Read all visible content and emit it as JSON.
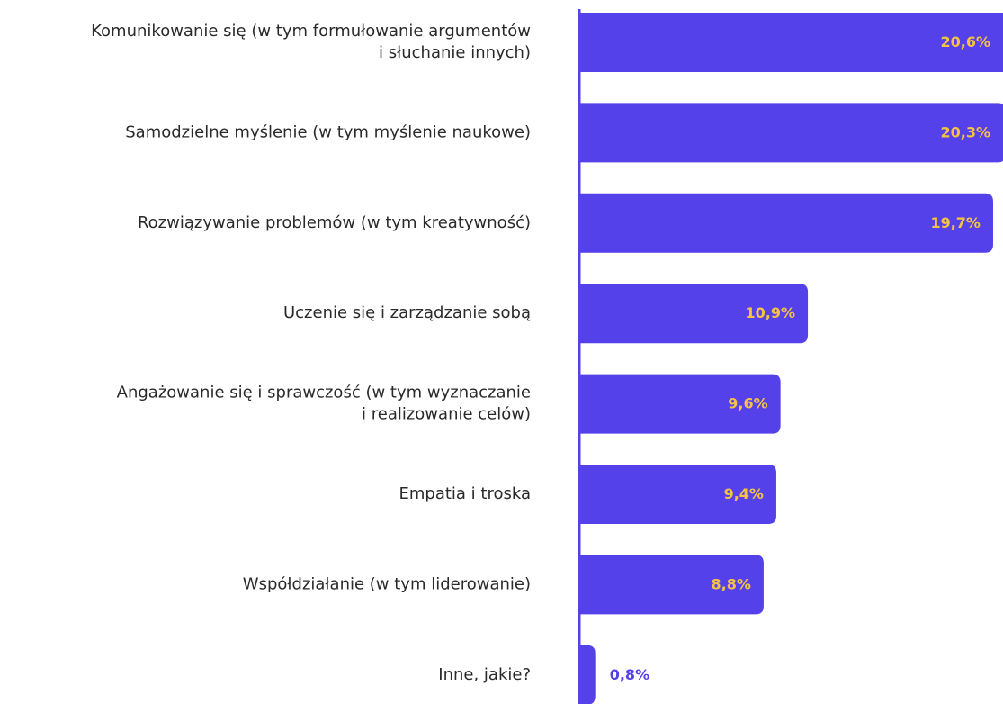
{
  "chart_data": {
    "type": "bar",
    "orientation": "horizontal",
    "color": "#5541ea",
    "label_color": "#f6c244",
    "categories": [
      "Komunikowanie się (w tym formułowanie argumentów\ni słuchanie innych)",
      "Samodzielne myślenie (w tym myślenie naukowe)",
      "Rozwiązywanie problemów (w tym kreatywność)",
      "Uczenie się i zarządzanie sobą",
      "Angażowanie się i sprawczość (w tym wyznaczanie\ni realizowanie celów)",
      "Empatia i troska",
      "Współdziałanie (w tym liderowanie)",
      "Inne, jakie?"
    ],
    "values": [
      20.6,
      20.3,
      19.7,
      10.9,
      9.6,
      9.4,
      8.8,
      0.8
    ],
    "value_labels": [
      "20,6%",
      "20,3%",
      "19,7%",
      "10,9%",
      "9,6%",
      "9,4%",
      "8,8%",
      "0,8%"
    ]
  }
}
